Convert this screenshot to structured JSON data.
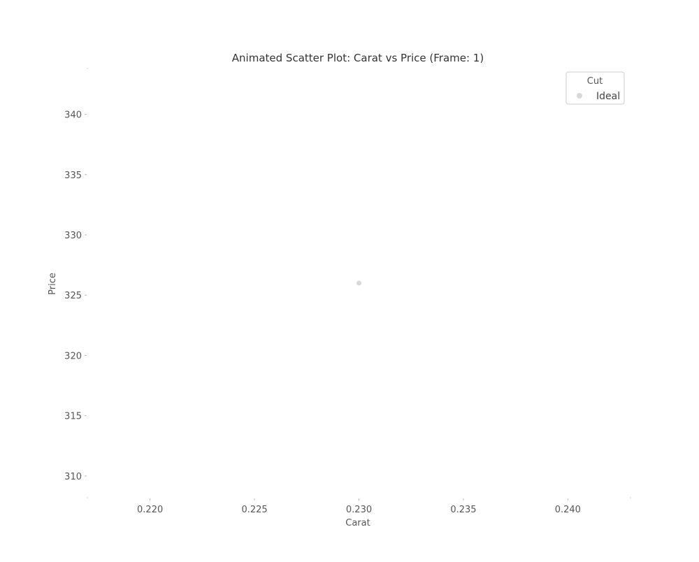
{
  "chart_data": {
    "type": "scatter",
    "title": "Animated Scatter Plot: Carat vs Price (Frame: 1)",
    "xlabel": "Carat",
    "ylabel": "Price",
    "xlim": [
      0.217,
      0.243
    ],
    "ylim": [
      308.2,
      343.8
    ],
    "x_ticks": [
      0.22,
      0.225,
      0.23,
      0.235,
      0.24
    ],
    "x_tick_labels": [
      "0.220",
      "0.225",
      "0.230",
      "0.235",
      "0.240"
    ],
    "y_ticks": [
      310,
      315,
      320,
      325,
      330,
      335,
      340
    ],
    "y_tick_labels": [
      "310",
      "315",
      "320",
      "325",
      "330",
      "335",
      "340"
    ],
    "grid": false,
    "legend": {
      "title": "Cut",
      "placement": "top-right",
      "entries": [
        "Ideal"
      ]
    },
    "series": [
      {
        "name": "Ideal",
        "color": "#d9d9d9",
        "points": [
          {
            "x": 0.23,
            "y": 326
          }
        ]
      }
    ]
  }
}
